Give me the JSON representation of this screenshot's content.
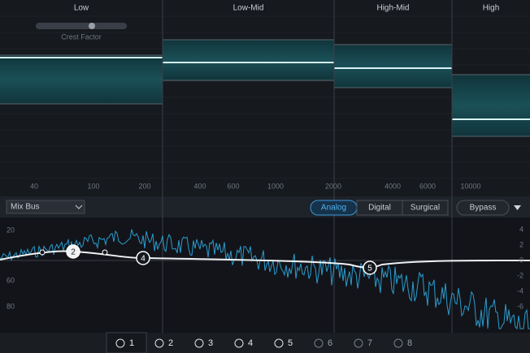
{
  "bands": [
    {
      "label": "Low"
    },
    {
      "label": "Low-Mid"
    },
    {
      "label": "High-Mid"
    },
    {
      "label": "High"
    }
  ],
  "crest_factor": "Crest Factor",
  "frequency_labels": [
    "40",
    "100",
    "200",
    "400",
    "600",
    "1000",
    "2000",
    "4000",
    "6000",
    "10000"
  ],
  "toolbar": {
    "preset": "Mix Bus",
    "modes": [
      "Analog",
      "Digital",
      "Surgical"
    ],
    "bypass": "Bypass"
  },
  "left_scale": [
    "20",
    "60",
    "80"
  ],
  "right_scale": [
    "4",
    "2",
    "0",
    "-2",
    "-4",
    "-6"
  ],
  "nodes": [
    "2",
    "4",
    "5"
  ],
  "tabs": [
    "1",
    "2",
    "3",
    "4",
    "5",
    "6",
    "7",
    "8"
  ]
}
